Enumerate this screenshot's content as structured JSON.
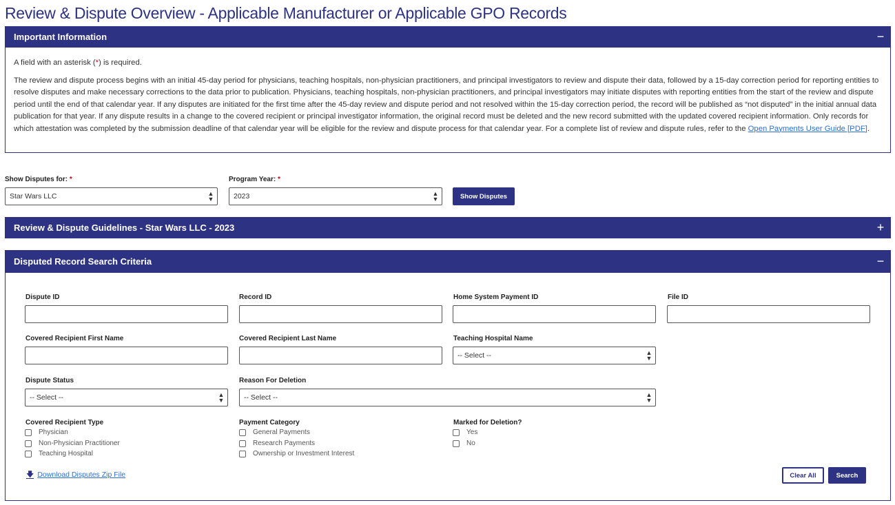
{
  "page_title": "Review & Dispute Overview - Applicable Manufacturer or Applicable GPO Records",
  "important": {
    "title": "Important Information",
    "toggle": "−",
    "required_pre": "A field with an asterisk (",
    "required_star": "*",
    "required_post": ") is required.",
    "paragraph": "The review and dispute process begins with an initial 45-day period for physicians, teaching hospitals, non-physician practitioners, and principal investigators to review and dispute their data, followed by a 15-day correction period for reporting entities to resolve disputes and make necessary corrections to the data prior to publication. Physicians, teaching hospitals, non-physician practitioners, and principal investigators may initiate disputes with reporting entities from the start of the review and dispute period until the end of that calendar year. If any disputes are initiated for the first time after the 45-day review and dispute period and not resolved within the 15-day correction period, the record will be published as “not disputed” in the initial annual data publication for that year. If any dispute results in a change to the covered recipient or principal investigator information, the original record must be deleted and the new record submitted with the updated covered recipient information. Only records for which attestation was completed by the submission deadline of that calendar year will be eligible for the review and dispute process for that calendar year. For a complete list of review and dispute rules, refer to the ",
    "link": "Open Payments User Guide [PDF]",
    "end": "."
  },
  "filters": {
    "show_for_label": "Show Disputes for:",
    "show_for_value": "Star Wars LLC",
    "year_label": "Program Year:",
    "year_value": "2023",
    "star": "*",
    "button": "Show Disputes"
  },
  "guidelines": {
    "title": "Review & Dispute Guidelines - Star Wars LLC - 2023",
    "toggle": "+"
  },
  "search": {
    "title": "Disputed Record Search Criteria",
    "toggle": "−",
    "dispute_id": "Dispute ID",
    "record_id": "Record ID",
    "home_id": "Home System Payment ID",
    "file_id": "File ID",
    "first_name": "Covered Recipient First Name",
    "last_name": "Covered Recipient Last Name",
    "hospital": "Teaching Hospital Name",
    "hospital_value": "-- Select --",
    "status": "Dispute Status",
    "status_value": "-- Select --",
    "reason": "Reason For Deletion",
    "reason_value": "-- Select --",
    "type_label": "Covered Recipient Type",
    "types": [
      "Physician",
      "Non-Physician Practitioner",
      "Teaching Hospital"
    ],
    "cat_label": "Payment Category",
    "cats": [
      "General Payments",
      "Research Payments",
      "Ownership or Investment Interest"
    ],
    "del_label": "Marked for Deletion?",
    "dels": [
      "Yes",
      "No"
    ],
    "download": "Download Disputes Zip File",
    "clear": "Clear All",
    "search_btn": "Search"
  },
  "colors": {
    "brand": "#2d3282",
    "required": "#d0021b",
    "link": "#2d6fd0"
  }
}
